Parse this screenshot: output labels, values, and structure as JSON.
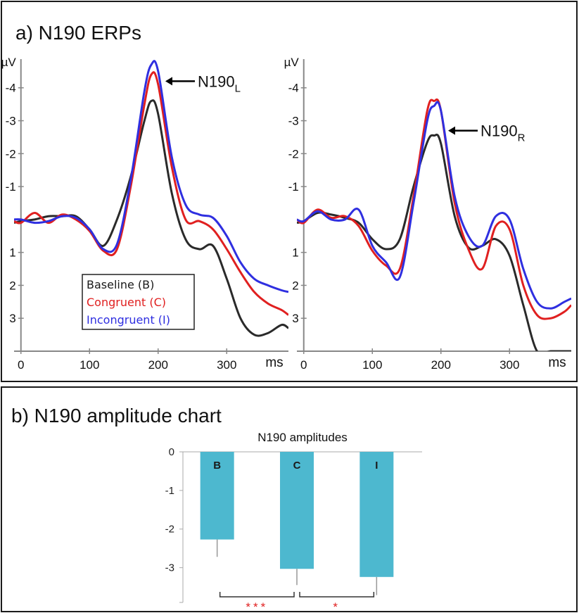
{
  "panel_a": {
    "title": "a) N190 ERPs"
  },
  "panel_b": {
    "title": "b) N190 amplitude chart"
  },
  "chart_data": [
    {
      "type": "line",
      "xlabel": "ms",
      "ylabel": "µV",
      "y_inverted": true,
      "xlim": [
        -10,
        390
      ],
      "ylim": [
        -4.7,
        4.0
      ],
      "x_ticks": [
        0,
        100,
        200,
        300
      ],
      "y_ticks": [
        -4,
        -3,
        -2,
        -1,
        1,
        2,
        3
      ],
      "annotation": {
        "text": "N190",
        "subscript": "L",
        "points_to": {
          "x": 190,
          "y": -4.2
        }
      },
      "legend": {
        "placement": "bottom-left",
        "entries": [
          "Baseline (B)",
          "Congruent (C)",
          "Incongruent (I)"
        ]
      },
      "x": [
        -10,
        0,
        20,
        40,
        60,
        80,
        100,
        120,
        140,
        160,
        180,
        190,
        200,
        220,
        240,
        260,
        280,
        300,
        320,
        340,
        360,
        380,
        390
      ],
      "series": [
        {
          "name": "Baseline (B)",
          "color": "#2a2a2a",
          "values": [
            0.1,
            0.05,
            0.0,
            -0.1,
            -0.1,
            -0.1,
            0.3,
            0.8,
            0.0,
            -1.3,
            -3.0,
            -3.6,
            -3.2,
            -0.8,
            0.6,
            0.9,
            0.8,
            1.8,
            3.0,
            3.5,
            3.45,
            3.2,
            3.3
          ]
        },
        {
          "name": "Congruent (C)",
          "color": "#e02020",
          "values": [
            0.05,
            0.1,
            -0.2,
            0.1,
            -0.15,
            0.0,
            0.35,
            0.95,
            0.9,
            -1.0,
            -3.5,
            -4.4,
            -4.1,
            -1.6,
            0.0,
            0.05,
            0.3,
            0.9,
            1.6,
            2.2,
            2.55,
            2.75,
            2.9
          ]
        },
        {
          "name": "Incongruent (I)",
          "color": "#2f2fe0",
          "values": [
            0.0,
            0.0,
            0.1,
            0.05,
            -0.1,
            -0.05,
            0.3,
            0.9,
            0.75,
            -1.2,
            -3.9,
            -4.7,
            -4.5,
            -1.9,
            -0.45,
            -0.15,
            -0.05,
            0.5,
            1.3,
            1.8,
            2.0,
            2.15,
            2.2
          ]
        }
      ]
    },
    {
      "type": "line",
      "xlabel": "ms",
      "ylabel": "µV",
      "y_inverted": true,
      "xlim": [
        -10,
        390
      ],
      "ylim": [
        -4.7,
        4.0
      ],
      "x_ticks": [
        0,
        100,
        200,
        300
      ],
      "y_ticks": [
        -4,
        -3,
        -2,
        -1,
        1,
        2,
        3
      ],
      "annotation": {
        "text": "N190",
        "subscript": "R",
        "points_to": {
          "x": 190,
          "y": -2.7
        }
      },
      "x": [
        -10,
        0,
        20,
        40,
        60,
        80,
        100,
        120,
        140,
        160,
        180,
        190,
        200,
        220,
        240,
        260,
        280,
        300,
        320,
        340,
        360,
        380,
        390
      ],
      "series": [
        {
          "name": "Baseline (B)",
          "color": "#2a2a2a",
          "values": [
            0.1,
            0.05,
            -0.2,
            -0.15,
            -0.05,
            0.1,
            0.6,
            0.9,
            0.6,
            -1.0,
            -2.35,
            -2.55,
            -2.3,
            -0.1,
            0.85,
            0.8,
            0.6,
            1.1,
            2.6,
            4.0,
            4.0,
            4.0,
            4.0
          ]
        },
        {
          "name": "Congruent (C)",
          "color": "#e02020",
          "values": [
            0.0,
            0.1,
            -0.3,
            -0.05,
            -0.1,
            0.2,
            0.95,
            1.4,
            1.5,
            -0.7,
            -3.3,
            -3.6,
            -3.3,
            -0.5,
            0.9,
            1.5,
            0.2,
            0.3,
            2.0,
            2.9,
            3.0,
            2.8,
            2.6
          ]
        },
        {
          "name": "Incongruent (I)",
          "color": "#2f2fe0",
          "values": [
            0.0,
            0.05,
            -0.25,
            0.0,
            0.0,
            -0.3,
            0.8,
            1.3,
            1.75,
            -0.5,
            -3.0,
            -3.45,
            -3.3,
            -0.7,
            0.5,
            0.8,
            -0.1,
            0.0,
            1.5,
            2.5,
            2.7,
            2.5,
            2.4
          ]
        }
      ]
    },
    {
      "type": "bar",
      "title": "N190 amplitudes",
      "categories": [
        "B",
        "C",
        "I"
      ],
      "values": [
        -2.27,
        -3.03,
        -3.24
      ],
      "errors": [
        0.45,
        0.42,
        0.47
      ],
      "ylim": [
        -3.9,
        0
      ],
      "y_ticks": [
        0,
        -1,
        -2,
        -3
      ],
      "bar_color": "#4db8cf",
      "significance": [
        {
          "between": [
            "B",
            "C"
          ],
          "label": "***"
        },
        {
          "between": [
            "C",
            "I"
          ],
          "label": "*"
        }
      ]
    }
  ]
}
